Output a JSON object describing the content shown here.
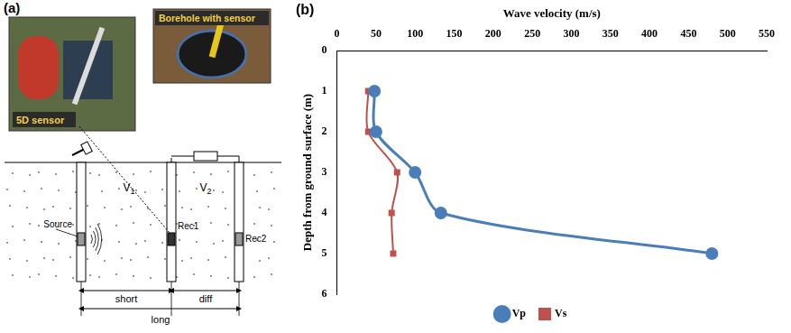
{
  "panel_a": {
    "letter": "(a)",
    "photo_captions": [
      "5D sensor",
      "Borehole with sensor"
    ],
    "diagram": {
      "source": "Source",
      "layers": [
        "V1",
        "V2"
      ],
      "receivers": [
        "Rec1",
        "Rec2"
      ],
      "distances": [
        "short",
        "diff",
        "long"
      ]
    }
  },
  "panel_b": {
    "letter": "(b)"
  },
  "chart_data": {
    "type": "line",
    "x_label": "Wave velocity (m/s)",
    "y_label": "Depth from ground surface (m)",
    "xlim": [
      0,
      550
    ],
    "xticks": [
      0,
      50,
      100,
      150,
      200,
      250,
      300,
      350,
      400,
      450,
      500,
      550
    ],
    "ylim": [
      0,
      6
    ],
    "yticks": [
      0,
      1,
      2,
      3,
      4,
      5,
      6
    ],
    "grid": false,
    "legend": "bottom",
    "series": [
      {
        "name": "Vp",
        "color": "#4a7ebb",
        "marker": "circle",
        "line_style": "solid",
        "x": [
          48,
          50,
          100,
          133,
          480
        ],
        "values": [
          1,
          2,
          3,
          4,
          5
        ]
      },
      {
        "name": "Vs",
        "color": "#c0504d",
        "marker": "square",
        "line_style": "solid",
        "x": [
          40,
          40,
          77,
          70,
          72
        ],
        "values": [
          1,
          2,
          3,
          4,
          5
        ]
      }
    ]
  }
}
